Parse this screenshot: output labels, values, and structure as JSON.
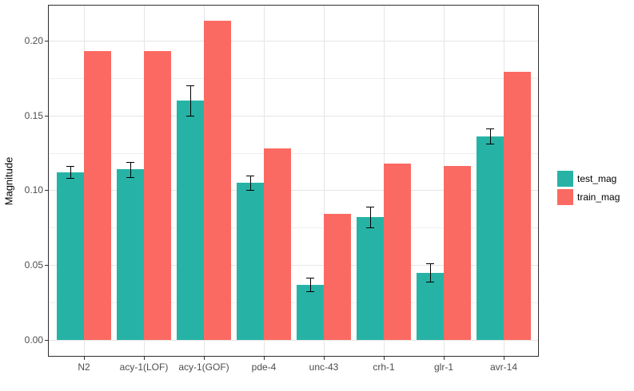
{
  "chart_data": {
    "type": "bar",
    "title": "",
    "xlabel": "",
    "ylabel": "Magnitude",
    "categories": [
      "N2",
      "acy-1(LOF)",
      "acy-1(GOF)",
      "pde-4",
      "unc-43",
      "crh-1",
      "glr-1",
      "avr-14"
    ],
    "series": [
      {
        "name": "test_mag",
        "color": "#26b3a6",
        "values": [
          0.112,
          0.114,
          0.16,
          0.105,
          0.037,
          0.082,
          0.045,
          0.136
        ],
        "errors": [
          0.004,
          0.005,
          0.01,
          0.005,
          0.0045,
          0.007,
          0.006,
          0.005
        ]
      },
      {
        "name": "train_mag",
        "color": "#fb6a62",
        "values": [
          0.193,
          0.193,
          0.213,
          0.128,
          0.084,
          0.118,
          0.116,
          0.179
        ],
        "errors": null
      }
    ],
    "y_axis": {
      "ticks": [
        {
          "label": "0.00",
          "value": 0.0
        },
        {
          "label": "0.05",
          "value": 0.05
        },
        {
          "label": "0.10",
          "value": 0.1
        },
        {
          "label": "0.15",
          "value": 0.15
        },
        {
          "label": "0.20",
          "value": 0.2
        }
      ],
      "minor_gridlines": [
        0.025,
        0.075,
        0.125,
        0.175
      ],
      "range": [
        0,
        0.2235
      ]
    },
    "grid": "on",
    "legend_position": "right",
    "colors": {
      "panel_border": "#2e2e2e",
      "major_gridline": "#e5e5e5",
      "minor_gridline": "#efefef",
      "tick_mark": "#333333",
      "tick_label": "#4d4d4d",
      "error_bar": "#000000"
    }
  }
}
